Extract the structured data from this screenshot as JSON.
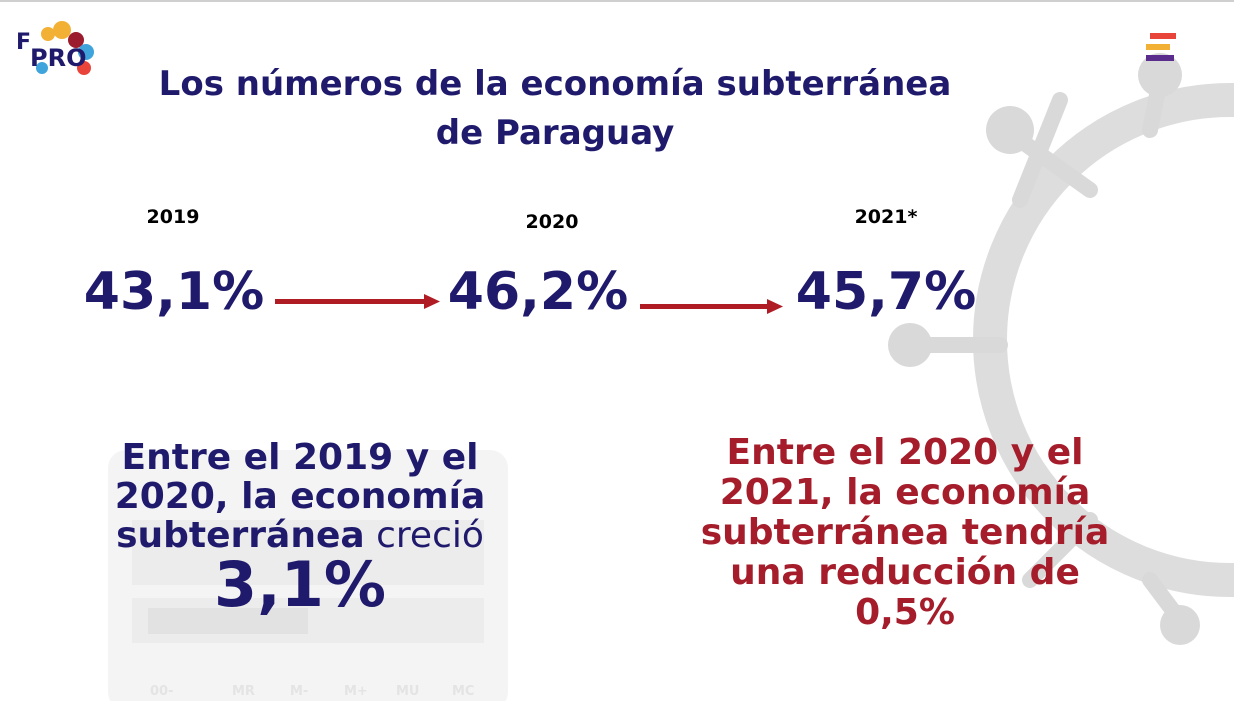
{
  "logo": {
    "text": "PRO",
    "initial": "F"
  },
  "header": {
    "title_line1": "Los números de la economía subterránea",
    "title_line2": "de Paraguay"
  },
  "timeline": [
    {
      "year": "2019",
      "value": "43,1%"
    },
    {
      "year": "2020",
      "value": "46,2%"
    },
    {
      "year": "2021*",
      "value": "45,7%"
    }
  ],
  "left_note": {
    "lines": [
      "Entre el 2019 y el",
      "2020, la economía",
      "subterránea"
    ],
    "verb": " creció",
    "figure": "3,1%"
  },
  "right_note": {
    "lines": [
      "Entre el 2020 y el",
      "2021, la economía",
      "subterránea tendría",
      "una reducción de",
      "0,5%"
    ]
  },
  "calculator_keys": [
    "00-",
    "MR",
    "M-",
    "M+",
    "MU",
    "MC"
  ]
}
